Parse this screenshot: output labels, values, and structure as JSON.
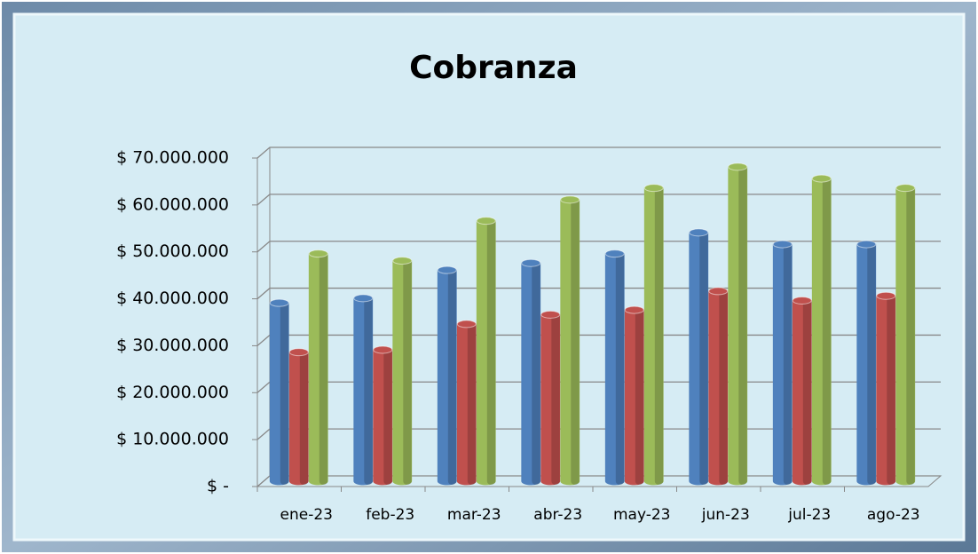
{
  "chart_data": {
    "type": "bar",
    "title": "Cobranza",
    "categories": [
      "ene-23",
      "feb-23",
      "mar-23",
      "abr-23",
      "may-23",
      "jun-23",
      "jul-23",
      "ago-23"
    ],
    "series": [
      {
        "color": "#4f81bd",
        "values": [
          38000000,
          39000000,
          45000000,
          46500000,
          48500000,
          53000000,
          50500000,
          50500000
        ]
      },
      {
        "color": "#c0504d",
        "values": [
          27500000,
          28000000,
          33500000,
          35500000,
          36500000,
          40500000,
          38500000,
          39500000
        ]
      },
      {
        "color": "#9bbb59",
        "values": [
          48500000,
          47000000,
          55500000,
          60000000,
          62500000,
          67000000,
          64500000,
          62500000
        ]
      }
    ],
    "ylim": [
      0,
      70000000
    ],
    "yticks": [
      {
        "value": 0,
        "label": "$ -"
      },
      {
        "value": 10000000,
        "label": "$ 10.000.000"
      },
      {
        "value": 20000000,
        "label": "$ 20.000.000"
      },
      {
        "value": 30000000,
        "label": "$ 30.000.000"
      },
      {
        "value": 40000000,
        "label": "$ 40.000.000"
      },
      {
        "value": 50000000,
        "label": "$ 50.000.000"
      },
      {
        "value": 60000000,
        "label": "$ 60.000.000"
      },
      {
        "value": 70000000,
        "label": "$ 70.000.000"
      }
    ],
    "grid": true
  }
}
